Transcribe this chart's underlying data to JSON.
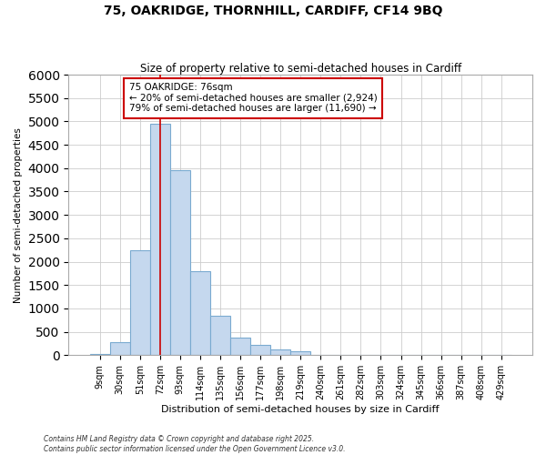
{
  "title_line1": "75, OAKRIDGE, THORNHILL, CARDIFF, CF14 9BQ",
  "title_line2": "Size of property relative to semi-detached houses in Cardiff",
  "xlabel": "Distribution of semi-detached houses by size in Cardiff",
  "ylabel": "Number of semi-detached properties",
  "footnote": "Contains HM Land Registry data © Crown copyright and database right 2025.\nContains public sector information licensed under the Open Government Licence v3.0.",
  "categories": [
    "9sqm",
    "30sqm",
    "51sqm",
    "72sqm",
    "93sqm",
    "114sqm",
    "135sqm",
    "156sqm",
    "177sqm",
    "198sqm",
    "219sqm",
    "240sqm",
    "261sqm",
    "282sqm",
    "303sqm",
    "324sqm",
    "345sqm",
    "366sqm",
    "387sqm",
    "408sqm",
    "429sqm"
  ],
  "values": [
    30,
    280,
    2250,
    4950,
    3950,
    1800,
    850,
    380,
    220,
    120,
    80,
    0,
    0,
    0,
    0,
    0,
    0,
    0,
    0,
    0,
    0
  ],
  "bar_color": "#c5d8ee",
  "bar_edgecolor": "#7aaad0",
  "vline_x": 3,
  "vline_color": "#cc0000",
  "annotation_title": "75 OAKRIDGE: 76sqm",
  "annotation_line1": "← 20% of semi-detached houses are smaller (2,924)",
  "annotation_line2": "79% of semi-detached houses are larger (11,690) →",
  "annotation_box_edgecolor": "#cc0000",
  "ylim": [
    0,
    6000
  ],
  "yticks": [
    0,
    500,
    1000,
    1500,
    2000,
    2500,
    3000,
    3500,
    4000,
    4500,
    5000,
    5500,
    6000
  ],
  "grid_color": "#cccccc",
  "bg_color": "#ffffff"
}
